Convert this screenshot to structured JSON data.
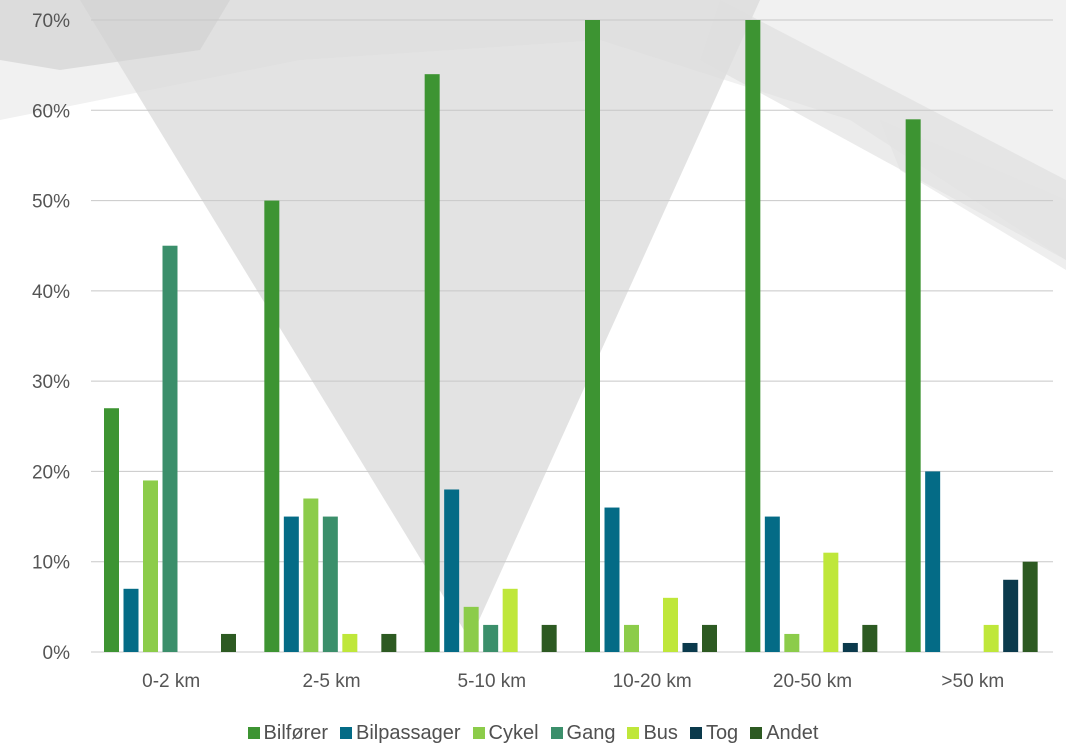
{
  "chart_data": {
    "type": "bar",
    "categories": [
      "0-2 km",
      "2-5 km",
      "5-10 km",
      "10-20 km",
      "20-50 km",
      ">50 km"
    ],
    "series": [
      {
        "name": "Bilfører",
        "color": "#3d9432",
        "values": [
          27,
          50,
          64,
          70,
          70,
          59
        ]
      },
      {
        "name": "Bilpassager",
        "color": "#046b86",
        "values": [
          7,
          15,
          18,
          16,
          15,
          20
        ]
      },
      {
        "name": "Cykel",
        "color": "#8ccc4a",
        "values": [
          19,
          17,
          5,
          3,
          2,
          0
        ]
      },
      {
        "name": "Gang",
        "color": "#3b8f6b",
        "values": [
          45,
          15,
          3,
          0,
          0,
          0
        ]
      },
      {
        "name": "Bus",
        "color": "#bfe73a",
        "values": [
          0,
          2,
          7,
          6,
          11,
          3
        ]
      },
      {
        "name": "Tog",
        "color": "#0b3a4c",
        "values": [
          0,
          0,
          0,
          1,
          1,
          8
        ]
      },
      {
        "name": "Andet",
        "color": "#2d5a22",
        "values": [
          2,
          2,
          3,
          3,
          3,
          10
        ]
      }
    ],
    "yticks": [
      "0%",
      "10%",
      "20%",
      "30%",
      "40%",
      "50%",
      "60%",
      "70%"
    ],
    "ylim": [
      0,
      70
    ],
    "grid": true,
    "legend_position": "bottom"
  }
}
